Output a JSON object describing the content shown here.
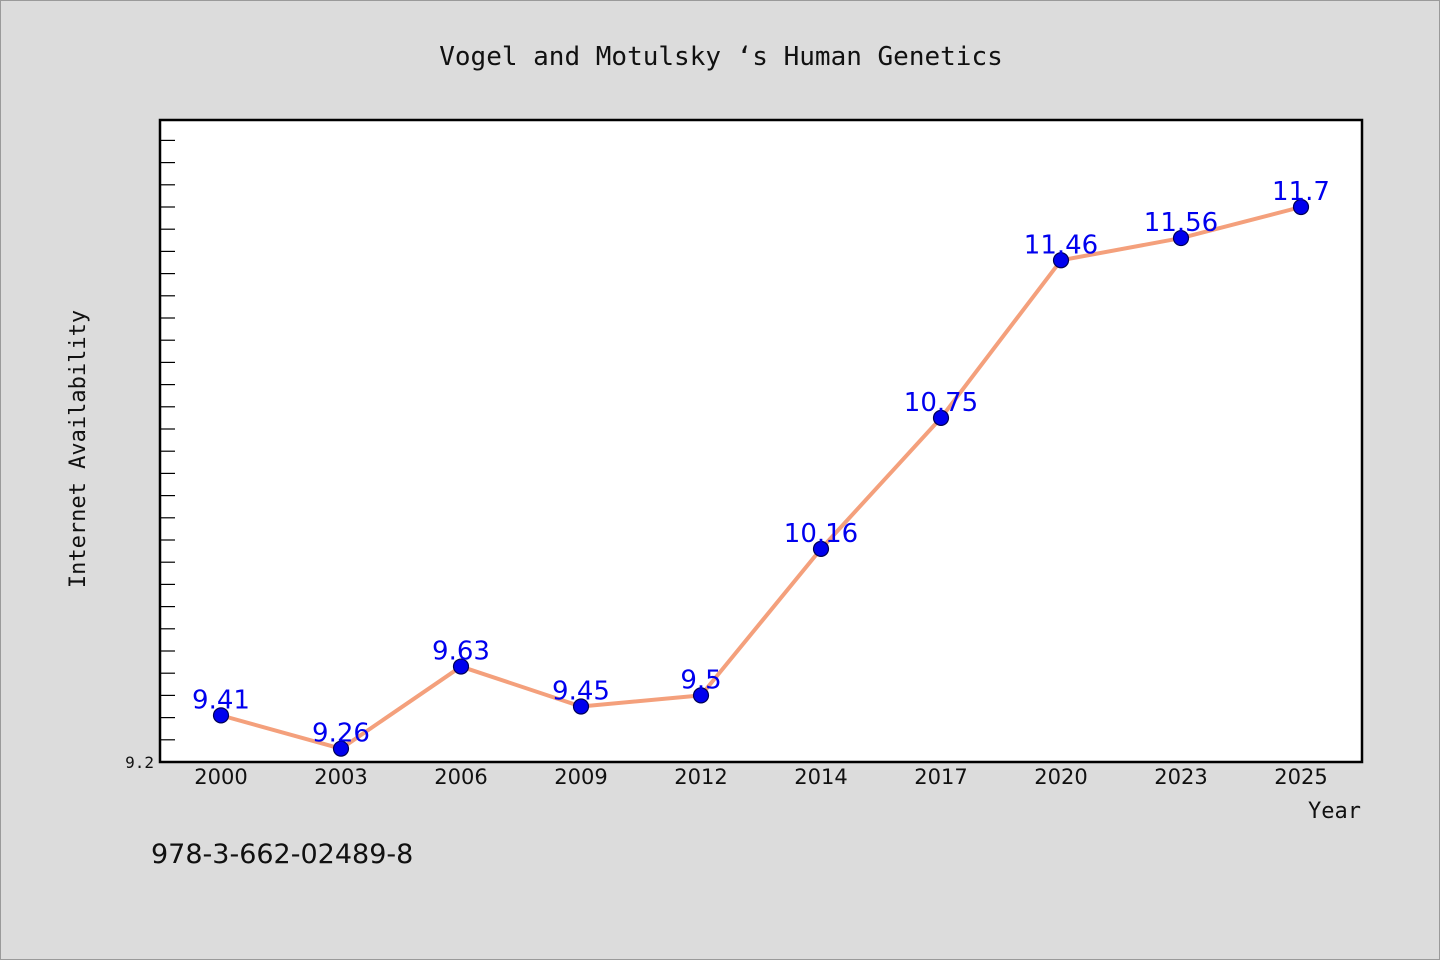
{
  "chart_data": {
    "type": "line",
    "title": "Vogel and Motulsky ‘s Human Genetics",
    "xlabel": "Year",
    "ylabel": "Internet Availability",
    "categories": [
      "2000",
      "2003",
      "2006",
      "2009",
      "2012",
      "2014",
      "2017",
      "2020",
      "2023",
      "2025"
    ],
    "series": [
      {
        "values": [
          9.41,
          9.26,
          9.63,
          9.45,
          9.5,
          10.16,
          10.75,
          11.46,
          11.56,
          11.7
        ]
      }
    ],
    "data_labels": [
      "9.41",
      "9.26",
      "9.63",
      "9.45",
      "9.5",
      "10.16",
      "10.75",
      "11.46",
      "11.56",
      "11.7"
    ],
    "ytick_label": "9.2",
    "ylim": [
      9.2,
      12.0
    ],
    "minor_tick_step": 0.1,
    "grid": false,
    "legend": "none",
    "colors": {
      "line": "#f4a07c",
      "marker_fill": "#0000ee",
      "marker_edge": "#000055",
      "data_label": "#0000ee",
      "plot_background": "#ffffff",
      "figure_background": "#dcdcdc"
    }
  },
  "footer": {
    "isbn": "978-3-662-02489-8"
  }
}
